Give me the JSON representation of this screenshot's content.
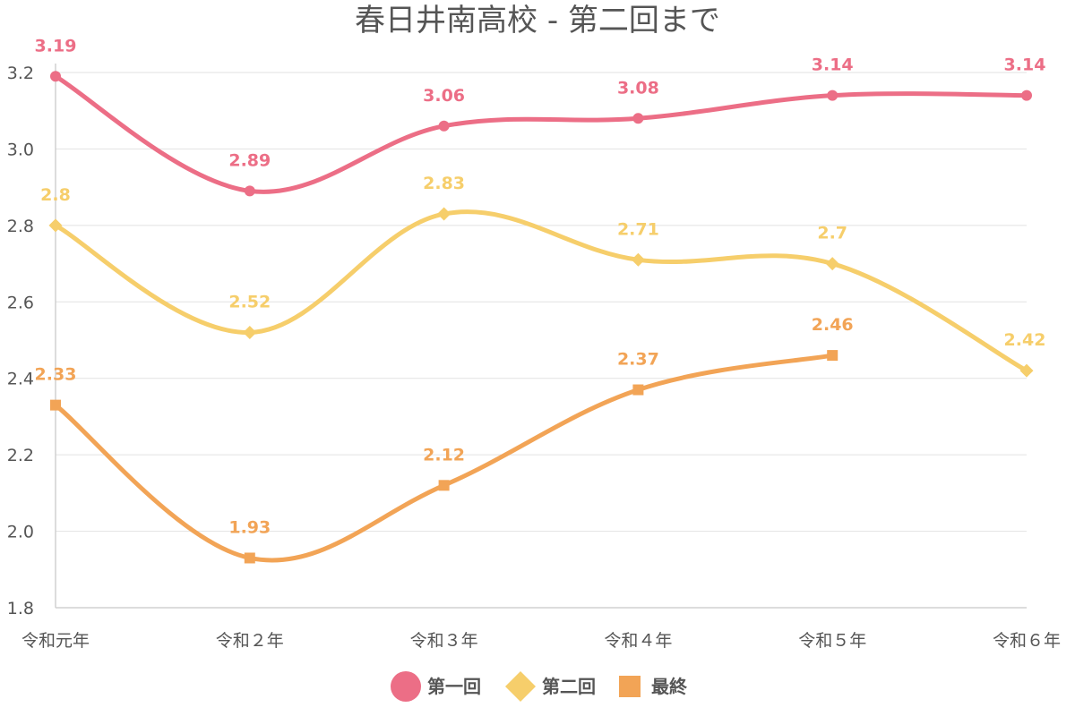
{
  "chart_data": {
    "type": "line",
    "title": "春日井南高校 - 第二回まで",
    "categories": [
      "令和元年",
      "令和２年",
      "令和３年",
      "令和４年",
      "令和５年",
      "令和６年"
    ],
    "ylim": [
      1.8,
      3.2
    ],
    "yticks": [
      "1.8",
      "2.0",
      "2.2",
      "2.4",
      "2.6",
      "2.8",
      "3.0",
      "3.2"
    ],
    "ytick_values": [
      1.8,
      2.0,
      2.2,
      2.4,
      2.6,
      2.8,
      3.0,
      3.2
    ],
    "grid": true,
    "legend_position": "bottom",
    "xlabel": "",
    "ylabel": "",
    "series": [
      {
        "name": "第一回",
        "marker": "circle",
        "color": "#ec6e86",
        "values": [
          3.19,
          2.89,
          3.06,
          3.08,
          3.14,
          3.14
        ],
        "labels": [
          "3.19",
          "2.89",
          "3.06",
          "3.08",
          "3.14",
          "3.14"
        ]
      },
      {
        "name": "第二回",
        "marker": "diamond",
        "color": "#f6ce6b",
        "values": [
          2.8,
          2.52,
          2.83,
          2.71,
          2.7,
          2.42
        ],
        "labels": [
          "2.8",
          "2.52",
          "2.83",
          "2.71",
          "2.7",
          "2.42"
        ]
      },
      {
        "name": "最終",
        "marker": "square",
        "color": "#f2a456",
        "values": [
          2.33,
          1.93,
          2.12,
          2.37,
          2.46,
          null
        ],
        "labels": [
          "2.33",
          "1.93",
          "2.12",
          "2.37",
          "2.46",
          ""
        ]
      }
    ]
  }
}
